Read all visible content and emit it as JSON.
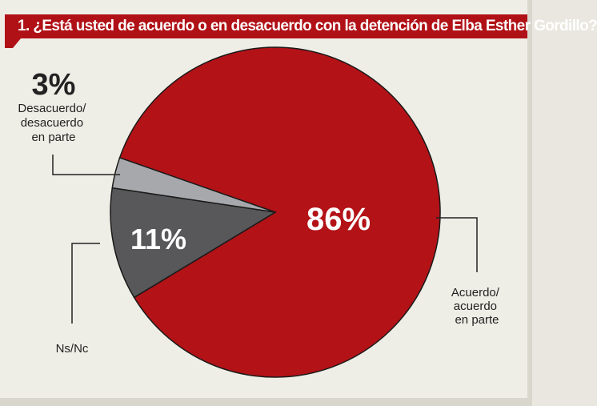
{
  "title": "1. ¿Está usted de acuerdo o en desacuerdo con la detención de Elba Esther Gordillo?",
  "colors": {
    "title_bg": "#b01116",
    "background": "#efeee6"
  },
  "chart_data": {
    "type": "pie",
    "slices": [
      {
        "label": "Acuerdo/ acuerdo en parte",
        "label_lines": [
          "Acuerdo/",
          "acuerdo",
          "en parte"
        ],
        "value": 86,
        "value_label": "86%",
        "color": "#b31217"
      },
      {
        "label": "Ns/Nc",
        "label_lines": [
          "Ns/Nc"
        ],
        "value": 11,
        "value_label": "11%",
        "color": "#58585a"
      },
      {
        "label": "Desacuerdo/ desacuerdo en parte",
        "label_lines": [
          "Desacuerdo/",
          "desacuerdo",
          "en parte"
        ],
        "value": 3,
        "value_label": "3%",
        "color": "#a7a8ac"
      }
    ]
  }
}
